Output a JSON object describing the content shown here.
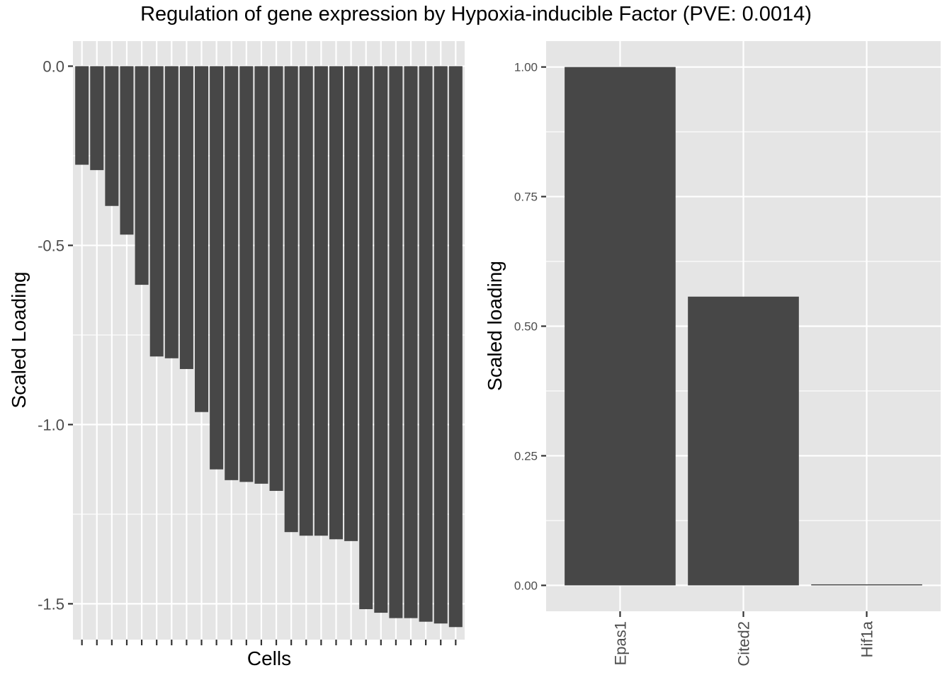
{
  "title": "Regulation of gene expression by Hypoxia-inducible Factor (PVE: 0.0014)",
  "chart_data": [
    {
      "type": "bar",
      "panel": "cells",
      "xlabel": "Cells",
      "ylabel": "Scaled Loading",
      "ylim": [
        -1.6,
        0.07
      ],
      "yticks": [
        0.0,
        -0.5,
        -1.0,
        -1.5
      ],
      "ytick_labels": [
        "0.0",
        "-0.5",
        "-1.0",
        "-1.5"
      ],
      "x_tick_labels_shown": false,
      "grid": true,
      "values": [
        -0.275,
        -0.29,
        -0.39,
        -0.47,
        -0.61,
        -0.81,
        -0.815,
        -0.845,
        -0.965,
        -1.125,
        -1.155,
        -1.16,
        -1.165,
        -1.185,
        -1.3,
        -1.31,
        -1.31,
        -1.32,
        -1.325,
        -1.515,
        -1.525,
        -1.54,
        -1.54,
        -1.55,
        -1.555,
        -1.565
      ]
    },
    {
      "type": "bar",
      "panel": "genes",
      "xlabel": "",
      "ylabel": "Scaled loading",
      "categories": [
        "Epas1",
        "Cited2",
        "Hif1a"
      ],
      "values": [
        1.0,
        0.557,
        0.002
      ],
      "ylim": [
        -0.05,
        1.05
      ],
      "yticks": [
        0.0,
        0.25,
        0.5,
        0.75,
        1.0
      ],
      "ytick_labels": [
        "0.00",
        "0.25",
        "0.50",
        "0.75",
        "1.00"
      ],
      "grid": true
    }
  ]
}
